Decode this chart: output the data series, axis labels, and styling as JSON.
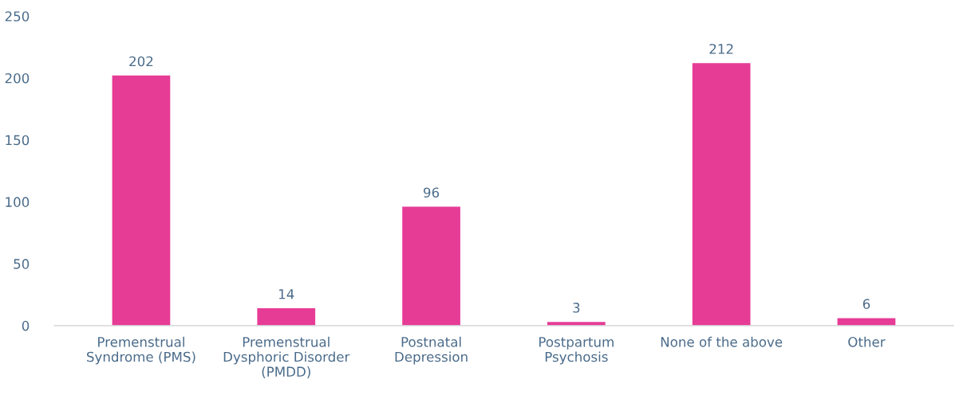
{
  "chart_data": {
    "type": "bar",
    "categories": [
      "Premenstrual\nSyndrome (PMS)",
      "Premenstrual\nDysphoric Disorder\n(PMDD)",
      "Postnatal\nDepression",
      "Postpartum\nPsychosis",
      "None of the above",
      "Other"
    ],
    "values": [
      202,
      14,
      96,
      3,
      212,
      6
    ],
    "color": "#e63c96",
    "ylim": [
      0,
      250
    ],
    "yticks": [
      0,
      50,
      100,
      150,
      200,
      250
    ],
    "data_labels": true,
    "grid": false,
    "legend": false
  }
}
